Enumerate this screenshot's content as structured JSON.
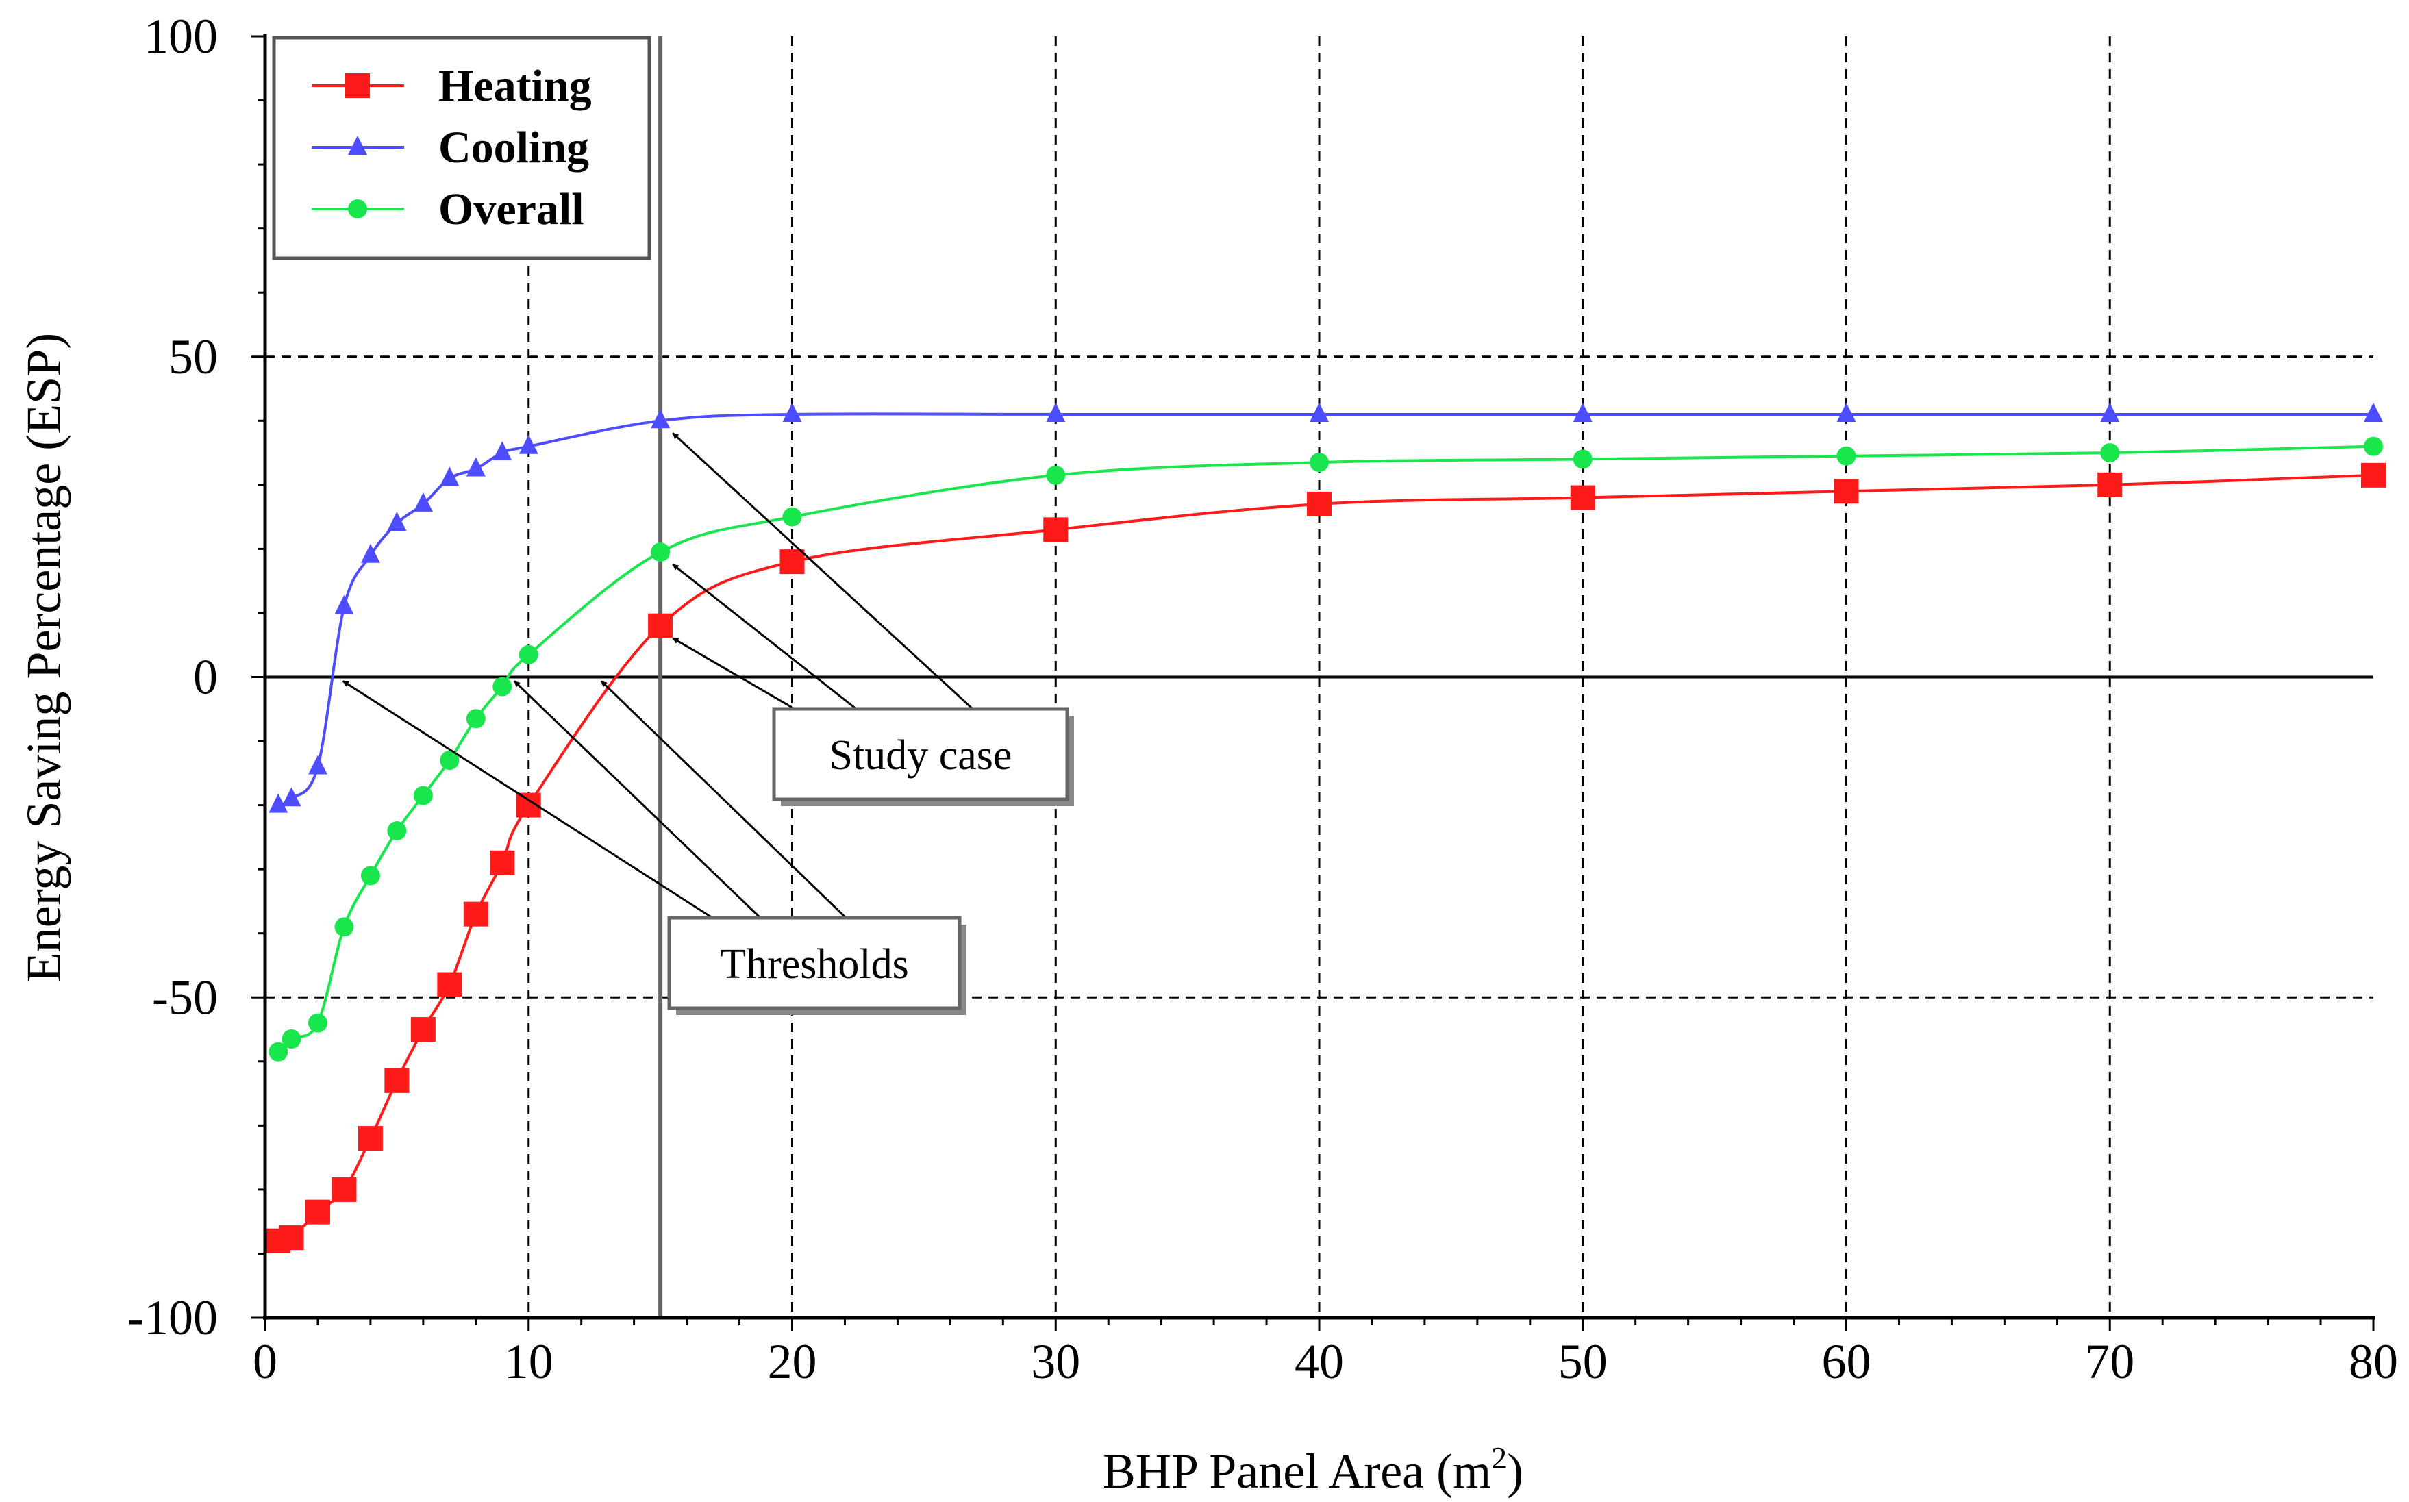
{
  "chart_data": {
    "type": "line",
    "title": "",
    "xlabel": "BHP Panel Area (m",
    "xlabel_sup": "2",
    "xlabel_close": ")",
    "ylabel": "Energy Saving Percentage (ESP)",
    "xlim": [
      0,
      80
    ],
    "ylim": [
      -100,
      100
    ],
    "x_ticks": [
      0,
      10,
      20,
      30,
      40,
      50,
      60,
      70,
      80
    ],
    "x_tick_labels": [
      "0",
      "10",
      "20",
      "30",
      "40",
      "50",
      "60",
      "70",
      "80"
    ],
    "y_ticks": [
      -100,
      -50,
      0,
      50,
      100
    ],
    "y_tick_labels": [
      "-100",
      "-50",
      "0",
      "50",
      "100"
    ],
    "grid": true,
    "legend_position": "top-left",
    "series": [
      {
        "name": "Heating",
        "color": "#ff1a1a",
        "marker": "square",
        "x": [
          0.5,
          1,
          2,
          3,
          4,
          5,
          6,
          7,
          8,
          9,
          10,
          15,
          20,
          30,
          40,
          50,
          60,
          70,
          80
        ],
        "y": [
          -88,
          -87.5,
          -83.5,
          -80,
          -72,
          -63,
          -55,
          -48,
          -37,
          -29,
          -20,
          8,
          18,
          23,
          27,
          28,
          29,
          30,
          31.5
        ]
      },
      {
        "name": "Cooling",
        "color": "#4d4dff",
        "marker": "triangle",
        "x": [
          0.5,
          1,
          2,
          3,
          4,
          5,
          6,
          7,
          8,
          9,
          10,
          15,
          20,
          30,
          40,
          50,
          60,
          70,
          80
        ],
        "y": [
          -20,
          -19,
          -14,
          11,
          19,
          24,
          27,
          31,
          32.5,
          35,
          36,
          40,
          41,
          41,
          41,
          41,
          41,
          41,
          41
        ]
      },
      {
        "name": "Overall",
        "color": "#19e64d",
        "marker": "circle",
        "x": [
          0.5,
          1,
          2,
          3,
          4,
          5,
          6,
          7,
          8,
          9,
          10,
          15,
          20,
          30,
          40,
          50,
          60,
          70,
          80
        ],
        "y": [
          -58.5,
          -56.5,
          -54,
          -39,
          -31,
          -24,
          -18.5,
          -13,
          -6.5,
          -1.5,
          3.5,
          19.5,
          25,
          31.5,
          33.5,
          34,
          34.5,
          35,
          36
        ]
      }
    ],
    "reference_lines": {
      "horizontal_y": 0,
      "vertical_x": 15
    },
    "annotations": [
      {
        "label": "Study case",
        "targets": [
          {
            "x": 15,
            "y": 8
          },
          {
            "x": 15,
            "y": 19.5
          },
          {
            "x": 15,
            "y": 40
          }
        ]
      },
      {
        "label": "Thresholds",
        "targets": [
          {
            "x": 2.8,
            "y": 0
          },
          {
            "x": 9.3,
            "y": 0
          },
          {
            "x": 12.6,
            "y": 0
          }
        ]
      }
    ]
  }
}
